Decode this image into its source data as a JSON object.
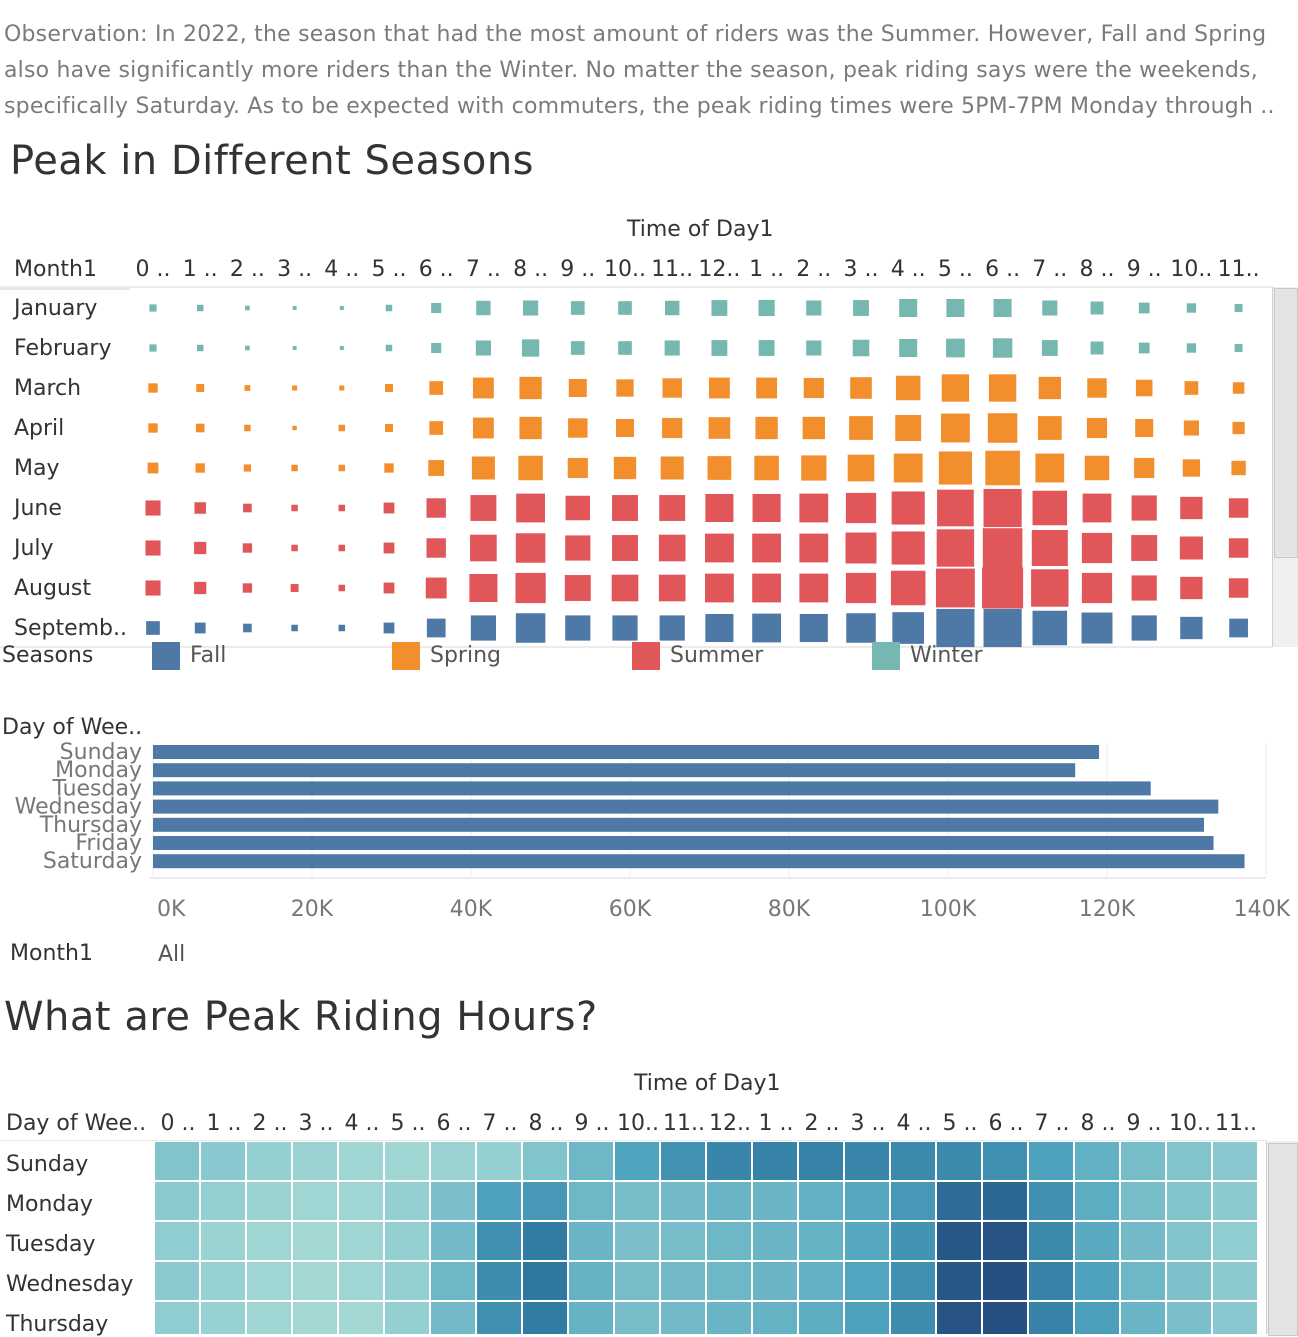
{
  "observation": {
    "lines": [
      "Observation: In 2022, the season that had the most amount of riders was the Summer. However, Fall and Spring",
      "also have significantly more riders than the Winter. No matter the season, peak riding says were the weekends,",
      "specifically Saturday. As to be expected with commuters, the peak riding times were 5PM-7PM  Monday through .."
    ]
  },
  "section1": {
    "title": "Peak in Different Seasons"
  },
  "section2": {
    "title": "What are Peak Riding Hours?"
  },
  "colors": {
    "Fall": "#4e79a7",
    "Spring": "#f28e2b",
    "Summer": "#e15759",
    "Winter": "#76b7b2",
    "bar": "#4e79a7"
  },
  "chart_data": [
    {
      "type": "scatter",
      "mark": "square",
      "column_header": "Time of Day1",
      "row_header": "Month1",
      "hours": [
        "0 ..",
        "1 ..",
        "2 ..",
        "3 ..",
        "4 ..",
        "5 ..",
        "6 ..",
        "7 ..",
        "8 ..",
        "9 ..",
        "10..",
        "11..",
        "12..",
        "1 ..",
        "2 ..",
        "3 ..",
        "4 ..",
        "5 ..",
        "6 ..",
        "7 ..",
        "8 ..",
        "9 ..",
        "10..",
        "11.."
      ],
      "months": [
        "January",
        "February",
        "March",
        "April",
        "May",
        "June",
        "July",
        "August",
        "Septemb.."
      ],
      "month_season": [
        "Winter",
        "Winter",
        "Spring",
        "Spring",
        "Spring",
        "Summer",
        "Summer",
        "Summer",
        "Fall"
      ],
      "legend_title": "Seasons",
      "legend": [
        "Fall",
        "Spring",
        "Summer",
        "Winter"
      ],
      "relative_size": [
        [
          0.2,
          0.18,
          0.13,
          0.1,
          0.1,
          0.18,
          0.28,
          0.4,
          0.42,
          0.38,
          0.38,
          0.4,
          0.44,
          0.45,
          0.42,
          0.44,
          0.5,
          0.5,
          0.5,
          0.42,
          0.36,
          0.3,
          0.26,
          0.22
        ],
        [
          0.2,
          0.18,
          0.13,
          0.1,
          0.1,
          0.18,
          0.28,
          0.42,
          0.48,
          0.38,
          0.38,
          0.42,
          0.44,
          0.44,
          0.42,
          0.46,
          0.5,
          0.52,
          0.54,
          0.44,
          0.36,
          0.3,
          0.26,
          0.22
        ],
        [
          0.26,
          0.22,
          0.16,
          0.14,
          0.14,
          0.22,
          0.38,
          0.58,
          0.62,
          0.5,
          0.48,
          0.54,
          0.58,
          0.58,
          0.56,
          0.6,
          0.68,
          0.76,
          0.76,
          0.62,
          0.54,
          0.46,
          0.38,
          0.32
        ],
        [
          0.26,
          0.24,
          0.18,
          0.12,
          0.18,
          0.22,
          0.38,
          0.58,
          0.62,
          0.54,
          0.5,
          0.56,
          0.6,
          0.62,
          0.62,
          0.66,
          0.72,
          0.8,
          0.82,
          0.66,
          0.56,
          0.5,
          0.42,
          0.34
        ],
        [
          0.3,
          0.26,
          0.2,
          0.18,
          0.18,
          0.26,
          0.44,
          0.64,
          0.68,
          0.56,
          0.62,
          0.64,
          0.66,
          0.68,
          0.7,
          0.74,
          0.8,
          0.92,
          0.96,
          0.8,
          0.68,
          0.56,
          0.48,
          0.4
        ],
        [
          0.42,
          0.32,
          0.24,
          0.18,
          0.18,
          0.3,
          0.54,
          0.72,
          0.8,
          0.68,
          0.72,
          0.72,
          0.78,
          0.78,
          0.8,
          0.84,
          0.92,
          1.02,
          1.06,
          0.96,
          0.8,
          0.7,
          0.62,
          0.54
        ],
        [
          0.42,
          0.34,
          0.26,
          0.18,
          0.18,
          0.3,
          0.54,
          0.74,
          0.82,
          0.7,
          0.72,
          0.74,
          0.8,
          0.8,
          0.8,
          0.86,
          0.92,
          1.04,
          1.1,
          1.0,
          0.84,
          0.72,
          0.64,
          0.54
        ],
        [
          0.42,
          0.34,
          0.26,
          0.22,
          0.18,
          0.3,
          0.58,
          0.78,
          0.84,
          0.72,
          0.74,
          0.74,
          0.8,
          0.8,
          0.8,
          0.84,
          0.96,
          1.08,
          1.14,
          1.04,
          0.84,
          0.7,
          0.62,
          0.54
        ],
        [
          0.38,
          0.3,
          0.24,
          0.18,
          0.18,
          0.3,
          0.52,
          0.7,
          0.82,
          0.7,
          0.7,
          0.7,
          0.78,
          0.8,
          0.78,
          0.82,
          0.88,
          1.06,
          1.06,
          0.96,
          0.86,
          0.7,
          0.62,
          0.52
        ]
      ]
    },
    {
      "type": "bar",
      "orientation": "horizontal",
      "ylabel": "Day of Wee..",
      "categories": [
        "Sunday",
        "Monday",
        "Tuesday",
        "Wednesday",
        "Thursday",
        "Friday",
        "Saturday"
      ],
      "values": [
        119000,
        116000,
        125500,
        134000,
        132200,
        133400,
        137300
      ],
      "xlim": [
        0,
        140000
      ],
      "x_ticks": [
        "0K",
        "20K",
        "40K",
        "60K",
        "80K",
        "100K",
        "120K",
        "140K"
      ],
      "x_tick_values": [
        0,
        20000,
        40000,
        60000,
        80000,
        100000,
        120000,
        140000
      ],
      "grid": true
    },
    {
      "type": "heatmap",
      "column_header": "Time of Day1",
      "row_header": "Day of Wee..",
      "hours": [
        "0 ..",
        "1 ..",
        "2 ..",
        "3 ..",
        "4 ..",
        "5 ..",
        "6 ..",
        "7 ..",
        "8 ..",
        "9 ..",
        "10..",
        "11..",
        "12..",
        "1 ..",
        "2 ..",
        "3 ..",
        "4 ..",
        "5 ..",
        "6 ..",
        "7 ..",
        "8 ..",
        "9 ..",
        "10..",
        "11.."
      ],
      "days": [
        "Sunday",
        "Monday",
        "Tuesday",
        "Wednesday",
        "Thursday"
      ],
      "relative_intensity": [
        [
          0.3,
          0.26,
          0.2,
          0.16,
          0.14,
          0.14,
          0.16,
          0.2,
          0.3,
          0.4,
          0.55,
          0.65,
          0.72,
          0.74,
          0.74,
          0.72,
          0.7,
          0.7,
          0.66,
          0.56,
          0.45,
          0.36,
          0.3,
          0.26
        ],
        [
          0.24,
          0.2,
          0.16,
          0.14,
          0.14,
          0.2,
          0.34,
          0.56,
          0.62,
          0.4,
          0.36,
          0.38,
          0.42,
          0.42,
          0.46,
          0.52,
          0.62,
          0.86,
          0.88,
          0.66,
          0.48,
          0.36,
          0.3,
          0.24
        ],
        [
          0.22,
          0.16,
          0.14,
          0.12,
          0.14,
          0.2,
          0.38,
          0.66,
          0.78,
          0.42,
          0.34,
          0.36,
          0.4,
          0.42,
          0.44,
          0.52,
          0.64,
          0.96,
          0.98,
          0.7,
          0.5,
          0.38,
          0.3,
          0.22
        ],
        [
          0.24,
          0.18,
          0.14,
          0.12,
          0.14,
          0.2,
          0.4,
          0.68,
          0.8,
          0.44,
          0.36,
          0.38,
          0.4,
          0.42,
          0.46,
          0.54,
          0.66,
          0.96,
          1.0,
          0.74,
          0.56,
          0.4,
          0.32,
          0.24
        ],
        [
          0.22,
          0.18,
          0.14,
          0.12,
          0.12,
          0.2,
          0.38,
          0.66,
          0.78,
          0.44,
          0.36,
          0.38,
          0.42,
          0.44,
          0.48,
          0.56,
          0.68,
          0.98,
          1.0,
          0.74,
          0.58,
          0.42,
          0.34,
          0.26
        ]
      ]
    }
  ],
  "filter": {
    "label": "Month1",
    "value": "All"
  }
}
